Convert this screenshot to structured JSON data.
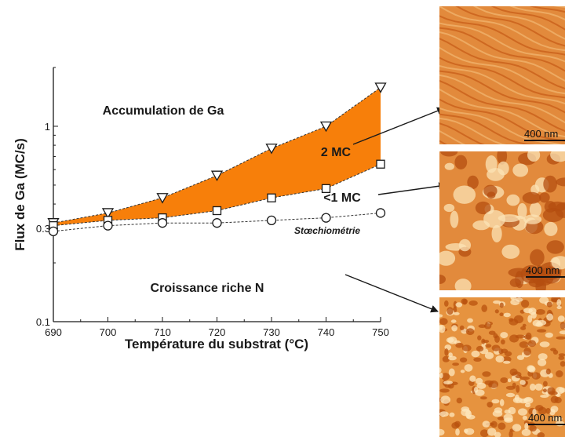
{
  "chart_data": {
    "type": "scatter",
    "xlabel": "Température du substrat (°C)",
    "ylabel": "Flux de Ga (MC/s)",
    "x_ticks": [
      "690",
      "700",
      "710",
      "720",
      "730",
      "740",
      "750"
    ],
    "y_ticks": [
      "0.1",
      "0.3",
      "1"
    ],
    "xlim": [
      690,
      750
    ],
    "ylim": [
      0.1,
      2.0
    ],
    "y_scale": "log",
    "grid": false,
    "x": [
      690,
      700,
      710,
      720,
      730,
      740,
      750
    ],
    "series": [
      {
        "marker": "triangle-down",
        "values": [
          0.32,
          0.36,
          0.43,
          0.56,
          0.77,
          1.0,
          1.58
        ]
      },
      {
        "marker": "square",
        "values": [
          0.31,
          0.33,
          0.34,
          0.37,
          0.43,
          0.48,
          0.64
        ]
      },
      {
        "marker": "circle",
        "values": [
          0.29,
          0.31,
          0.32,
          0.32,
          0.33,
          0.34,
          0.36
        ]
      }
    ],
    "shaded_region": {
      "between": [
        "triangle-down",
        "square"
      ],
      "color": "#f77f0a"
    },
    "annotations": {
      "accumulation": "Accumulation de Ga",
      "two_mc": "2 MC",
      "lt_one_mc": "<1 MC",
      "stoechiometrie": "Stœchiométrie",
      "croissance": "Croissance riche N"
    }
  },
  "afm_panels": [
    {
      "scale_label": "400 nm",
      "colors": [
        "#c65a16",
        "#e28a3c",
        "#f2b872"
      ],
      "texture": "terraces"
    },
    {
      "scale_label": "400 nm",
      "colors": [
        "#b44d10",
        "#e28a3c",
        "#fbe3b5"
      ],
      "texture": "pits"
    },
    {
      "scale_label": "400 nm",
      "colors": [
        "#b8520f",
        "#e6933f",
        "#fde7bd"
      ],
      "texture": "grains"
    }
  ],
  "colors": {
    "fill": "#f77f0a",
    "axis": "#1a1a1a",
    "marker": "#1a1a1a"
  }
}
